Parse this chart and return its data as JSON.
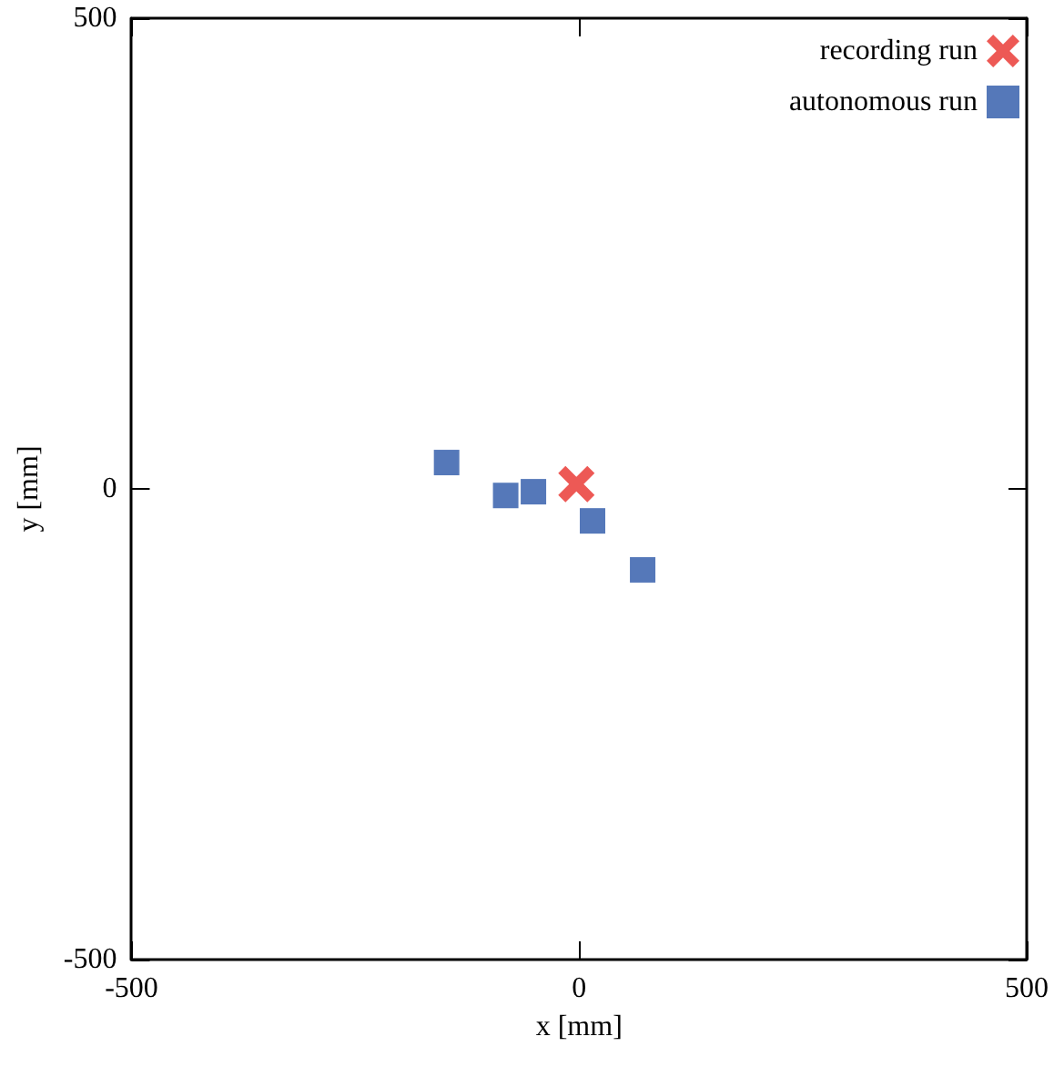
{
  "chart_data": {
    "type": "scatter",
    "xlabel": "x [mm]",
    "ylabel": "y [mm]",
    "xlim": [
      -500,
      500
    ],
    "ylim": [
      -500,
      500
    ],
    "xticks": [
      -500,
      0,
      500
    ],
    "yticks": [
      -500,
      0,
      500
    ],
    "grid": false,
    "legend": "top right",
    "series": [
      {
        "name": "recording run",
        "color": "#e8302a",
        "marker": "cross",
        "x": [
          -3
        ],
        "values": [
          5
        ]
      },
      {
        "name": "autonomous run",
        "color": "#2a56a8",
        "marker": "square",
        "x": [
          -148,
          -82,
          -51,
          15,
          71
        ],
        "values": [
          28,
          -7,
          -3,
          -34,
          -86
        ]
      }
    ]
  }
}
